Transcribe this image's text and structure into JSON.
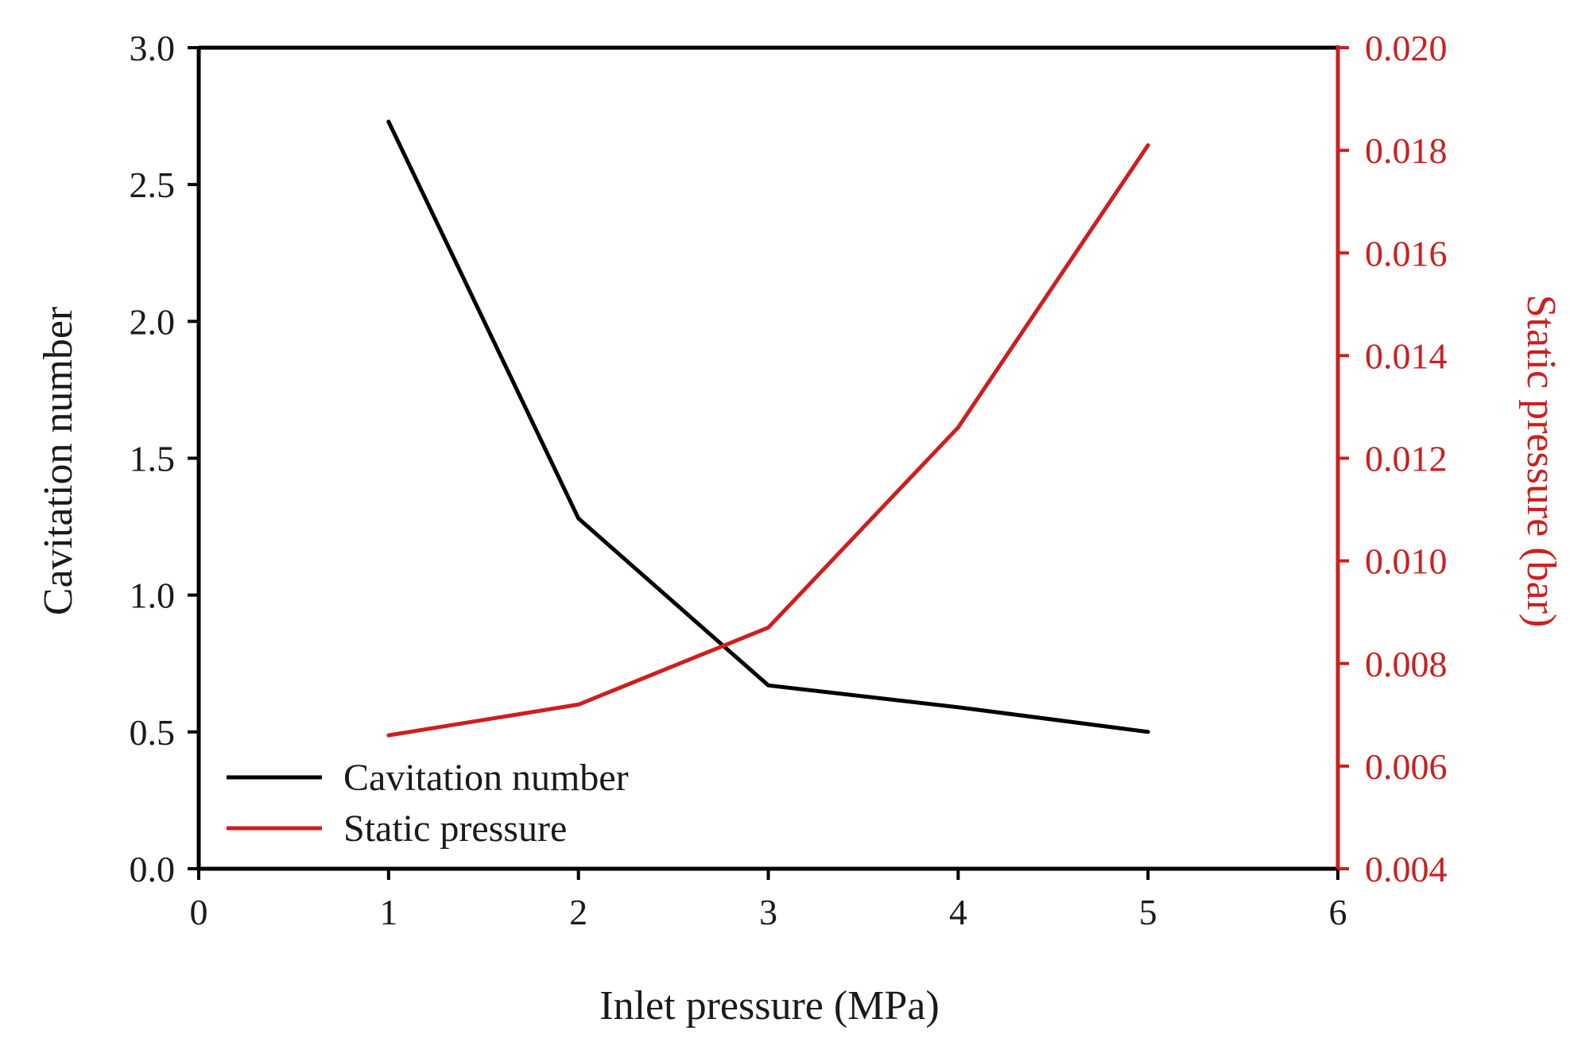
{
  "chart_data": {
    "type": "line",
    "title": "",
    "x": [
      1,
      2,
      3,
      4,
      5
    ],
    "xlabel": "Inlet pressure (MPa)",
    "xlim": [
      0,
      6
    ],
    "xticks": [
      "0",
      "1",
      "2",
      "3",
      "4",
      "5",
      "6"
    ],
    "ylabel_left": "Cavitation number",
    "ylim_left": [
      0,
      3
    ],
    "yticks_left": [
      "0.0",
      "0.5",
      "1.0",
      "1.5",
      "2.0",
      "2.5",
      "3.0"
    ],
    "ylabel_right": "Static pressure (bar)",
    "ylim_right": [
      0.004,
      0.02
    ],
    "yticks_right": [
      "0.004",
      "0.006",
      "0.008",
      "0.010",
      "0.012",
      "0.014",
      "0.016",
      "0.018",
      "0.020"
    ],
    "grid": false,
    "legend_position": "lower-left",
    "series": [
      {
        "name": "Cavitation number",
        "axis": "left",
        "color": "#000000",
        "values": [
          2.73,
          1.28,
          0.67,
          0.59,
          0.5
        ]
      },
      {
        "name": "Static pressure",
        "axis": "right",
        "color": "#cc1f1f",
        "values": [
          0.0066,
          0.0072,
          0.0087,
          0.0126,
          0.0181
        ]
      }
    ]
  }
}
